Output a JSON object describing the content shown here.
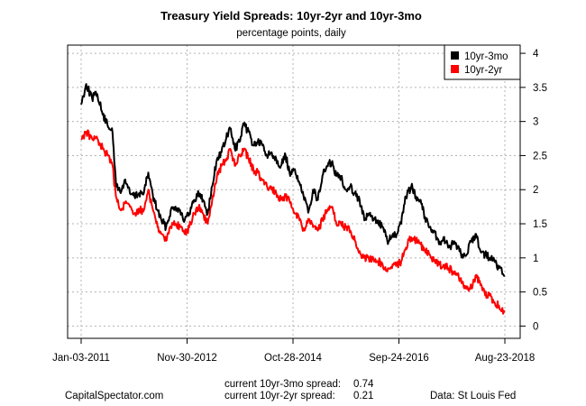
{
  "chart_data": {
    "type": "line",
    "title": "Treasury Yield Spreads: 10yr-2yr and 10yr-3mo",
    "subtitle": "percentage points, daily",
    "xlabel": "",
    "ylabel": "",
    "x_ticks": [
      "Jan-03-2011",
      "Nov-30-2012",
      "Oct-28-2014",
      "Sep-24-2016",
      "Aug-23-2018"
    ],
    "x_range": [
      "2011-01-03",
      "2018-08-23"
    ],
    "y_ticks": [
      "0",
      "0.5",
      "1",
      "1.5",
      "2",
      "2.5",
      "3",
      "3.5",
      "4"
    ],
    "ylim": [
      -0.18,
      4.12
    ],
    "y_axis_side": "right",
    "grid": true,
    "legend_position": "top-right",
    "series": [
      {
        "name": "10yr-3mo",
        "color": "#000000",
        "points": [
          [
            "2011-01-03",
            3.25
          ],
          [
            "2011-02-05",
            3.55
          ],
          [
            "2011-03-15",
            3.35
          ],
          [
            "2011-04-20",
            3.4
          ],
          [
            "2011-05-25",
            3.1
          ],
          [
            "2011-06-25",
            2.95
          ],
          [
            "2011-07-25",
            2.9
          ],
          [
            "2011-08-20",
            2.1
          ],
          [
            "2011-09-20",
            1.95
          ],
          [
            "2011-10-20",
            2.15
          ],
          [
            "2011-11-20",
            1.95
          ],
          [
            "2011-12-20",
            1.9
          ],
          [
            "2012-01-20",
            1.95
          ],
          [
            "2012-02-20",
            1.95
          ],
          [
            "2012-03-20",
            2.25
          ],
          [
            "2012-04-20",
            1.9
          ],
          [
            "2012-05-20",
            1.7
          ],
          [
            "2012-06-15",
            1.55
          ],
          [
            "2012-07-15",
            1.45
          ],
          [
            "2012-08-15",
            1.7
          ],
          [
            "2012-09-15",
            1.75
          ],
          [
            "2012-10-15",
            1.7
          ],
          [
            "2012-11-15",
            1.55
          ],
          [
            "2012-12-15",
            1.65
          ],
          [
            "2013-01-15",
            1.85
          ],
          [
            "2013-02-15",
            1.95
          ],
          [
            "2013-03-15",
            1.85
          ],
          [
            "2013-04-15",
            1.65
          ],
          [
            "2013-05-15",
            2.05
          ],
          [
            "2013-06-15",
            2.45
          ],
          [
            "2013-07-15",
            2.55
          ],
          [
            "2013-08-15",
            2.75
          ],
          [
            "2013-09-10",
            2.9
          ],
          [
            "2013-10-10",
            2.6
          ],
          [
            "2013-11-10",
            2.7
          ],
          [
            "2013-12-10",
            2.95
          ],
          [
            "2014-01-10",
            2.85
          ],
          [
            "2014-02-10",
            2.65
          ],
          [
            "2014-03-10",
            2.7
          ],
          [
            "2014-04-10",
            2.65
          ],
          [
            "2014-05-10",
            2.5
          ],
          [
            "2014-06-10",
            2.55
          ],
          [
            "2014-07-10",
            2.45
          ],
          [
            "2014-08-10",
            2.35
          ],
          [
            "2014-09-10",
            2.5
          ],
          [
            "2014-10-10",
            2.2
          ],
          [
            "2014-11-10",
            2.3
          ],
          [
            "2014-12-10",
            2.1
          ],
          [
            "2015-01-10",
            1.85
          ],
          [
            "2015-02-10",
            1.7
          ],
          [
            "2015-03-10",
            2.0
          ],
          [
            "2015-04-10",
            1.85
          ],
          [
            "2015-05-10",
            2.2
          ],
          [
            "2015-06-10",
            2.35
          ],
          [
            "2015-07-10",
            2.4
          ],
          [
            "2015-08-10",
            2.2
          ],
          [
            "2015-09-10",
            2.2
          ],
          [
            "2015-10-10",
            2.0
          ],
          [
            "2015-11-10",
            2.05
          ],
          [
            "2015-12-10",
            1.95
          ],
          [
            "2016-01-10",
            1.85
          ],
          [
            "2016-02-10",
            1.55
          ],
          [
            "2016-03-10",
            1.65
          ],
          [
            "2016-04-10",
            1.55
          ],
          [
            "2016-05-10",
            1.55
          ],
          [
            "2016-06-10",
            1.45
          ],
          [
            "2016-07-10",
            1.25
          ],
          [
            "2016-08-10",
            1.3
          ],
          [
            "2016-09-10",
            1.35
          ],
          [
            "2016-10-10",
            1.5
          ],
          [
            "2016-11-10",
            1.9
          ],
          [
            "2016-12-15",
            2.05
          ],
          [
            "2017-01-15",
            1.9
          ],
          [
            "2017-02-15",
            1.85
          ],
          [
            "2017-03-15",
            1.6
          ],
          [
            "2017-04-15",
            1.45
          ],
          [
            "2017-05-15",
            1.4
          ],
          [
            "2017-06-15",
            1.2
          ],
          [
            "2017-07-15",
            1.3
          ],
          [
            "2017-08-15",
            1.15
          ],
          [
            "2017-09-15",
            1.2
          ],
          [
            "2017-10-15",
            1.15
          ],
          [
            "2017-11-15",
            1.05
          ],
          [
            "2017-12-15",
            1.05
          ],
          [
            "2018-01-15",
            1.25
          ],
          [
            "2018-02-15",
            1.35
          ],
          [
            "2018-03-15",
            1.1
          ],
          [
            "2018-04-15",
            1.05
          ],
          [
            "2018-05-15",
            1.0
          ],
          [
            "2018-06-15",
            0.95
          ],
          [
            "2018-07-15",
            0.85
          ],
          [
            "2018-08-23",
            0.74
          ]
        ]
      },
      {
        "name": "10yr-2yr",
        "color": "#ff0000",
        "points": [
          [
            "2011-01-03",
            2.75
          ],
          [
            "2011-02-05",
            2.85
          ],
          [
            "2011-03-15",
            2.75
          ],
          [
            "2011-04-20",
            2.75
          ],
          [
            "2011-05-25",
            2.6
          ],
          [
            "2011-06-25",
            2.5
          ],
          [
            "2011-07-25",
            2.4
          ],
          [
            "2011-08-20",
            1.9
          ],
          [
            "2011-09-20",
            1.7
          ],
          [
            "2011-10-20",
            1.8
          ],
          [
            "2011-11-20",
            1.75
          ],
          [
            "2011-12-20",
            1.65
          ],
          [
            "2012-01-20",
            1.7
          ],
          [
            "2012-02-20",
            1.7
          ],
          [
            "2012-03-20",
            2.0
          ],
          [
            "2012-04-20",
            1.7
          ],
          [
            "2012-05-20",
            1.45
          ],
          [
            "2012-06-15",
            1.35
          ],
          [
            "2012-07-15",
            1.25
          ],
          [
            "2012-08-15",
            1.45
          ],
          [
            "2012-09-15",
            1.5
          ],
          [
            "2012-10-15",
            1.45
          ],
          [
            "2012-11-15",
            1.35
          ],
          [
            "2012-12-15",
            1.45
          ],
          [
            "2013-01-15",
            1.65
          ],
          [
            "2013-02-15",
            1.75
          ],
          [
            "2013-03-15",
            1.65
          ],
          [
            "2013-04-15",
            1.5
          ],
          [
            "2013-05-15",
            1.85
          ],
          [
            "2013-06-15",
            2.2
          ],
          [
            "2013-07-15",
            2.35
          ],
          [
            "2013-08-15",
            2.45
          ],
          [
            "2013-09-10",
            2.6
          ],
          [
            "2013-10-10",
            2.35
          ],
          [
            "2013-11-10",
            2.5
          ],
          [
            "2013-12-10",
            2.6
          ],
          [
            "2014-01-10",
            2.45
          ],
          [
            "2014-02-10",
            2.3
          ],
          [
            "2014-03-10",
            2.25
          ],
          [
            "2014-04-10",
            2.15
          ],
          [
            "2014-05-10",
            2.05
          ],
          [
            "2014-06-10",
            2.0
          ],
          [
            "2014-07-10",
            1.95
          ],
          [
            "2014-08-10",
            1.85
          ],
          [
            "2014-09-10",
            1.9
          ],
          [
            "2014-10-10",
            1.8
          ],
          [
            "2014-11-10",
            1.65
          ],
          [
            "2014-12-10",
            1.55
          ],
          [
            "2015-01-10",
            1.4
          ],
          [
            "2015-02-10",
            1.55
          ],
          [
            "2015-03-10",
            1.45
          ],
          [
            "2015-04-10",
            1.4
          ],
          [
            "2015-05-10",
            1.55
          ],
          [
            "2015-06-10",
            1.7
          ],
          [
            "2015-07-10",
            1.75
          ],
          [
            "2015-08-10",
            1.5
          ],
          [
            "2015-09-10",
            1.5
          ],
          [
            "2015-10-10",
            1.45
          ],
          [
            "2015-11-10",
            1.4
          ],
          [
            "2015-12-10",
            1.25
          ],
          [
            "2016-01-10",
            1.1
          ],
          [
            "2016-02-10",
            1.0
          ],
          [
            "2016-03-10",
            1.0
          ],
          [
            "2016-04-10",
            0.98
          ],
          [
            "2016-05-10",
            0.95
          ],
          [
            "2016-06-10",
            0.9
          ],
          [
            "2016-07-10",
            0.8
          ],
          [
            "2016-08-10",
            0.85
          ],
          [
            "2016-09-10",
            0.9
          ],
          [
            "2016-10-10",
            0.95
          ],
          [
            "2016-11-10",
            1.15
          ],
          [
            "2016-12-15",
            1.3
          ],
          [
            "2017-01-15",
            1.25
          ],
          [
            "2017-02-15",
            1.2
          ],
          [
            "2017-03-15",
            1.1
          ],
          [
            "2017-04-15",
            1.05
          ],
          [
            "2017-05-15",
            0.95
          ],
          [
            "2017-06-15",
            0.9
          ],
          [
            "2017-07-15",
            0.9
          ],
          [
            "2017-08-15",
            0.85
          ],
          [
            "2017-09-15",
            0.8
          ],
          [
            "2017-10-15",
            0.75
          ],
          [
            "2017-11-15",
            0.65
          ],
          [
            "2017-12-15",
            0.55
          ],
          [
            "2018-01-15",
            0.55
          ],
          [
            "2018-02-15",
            0.75
          ],
          [
            "2018-03-15",
            0.6
          ],
          [
            "2018-04-15",
            0.45
          ],
          [
            "2018-05-15",
            0.45
          ],
          [
            "2018-06-15",
            0.35
          ],
          [
            "2018-07-15",
            0.3
          ],
          [
            "2018-08-23",
            0.21
          ]
        ]
      }
    ],
    "annotations": {
      "current_3mo_label": "current 10yr-3mo spread:",
      "current_3mo_value": "0.74",
      "current_2yr_label": "current 10yr-2yr spread:",
      "current_2yr_value": "0.21",
      "source_left": "CapitalSpectator.com",
      "source_right": "Data: St Louis Fed"
    }
  }
}
